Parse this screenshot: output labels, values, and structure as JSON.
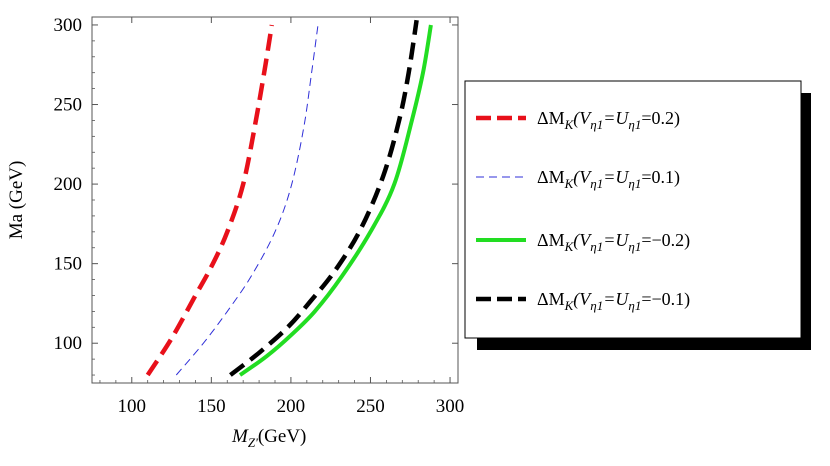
{
  "chart_data": {
    "type": "line",
    "xlabel": "M_{Z'}(GeV)",
    "ylabel": "Ma (GeV)",
    "xlim": [
      75,
      305
    ],
    "ylim": [
      75,
      305
    ],
    "x_ticks": [
      100,
      150,
      200,
      250,
      300
    ],
    "y_ticks": [
      100,
      150,
      200,
      250,
      300
    ],
    "grid": false,
    "legend_position": "right",
    "series": [
      {
        "name": "ΔM_K(V_η1=U_η1=0.2)",
        "legend": {
          "prefix": "ΔM",
          "sub1": "K",
          "open": "(V",
          "sub2": "η1",
          "mid": "=U",
          "sub3": "η1",
          "tail": "=0.2)"
        },
        "color": "#e8101a",
        "style": "thick-dashed",
        "points": [
          [
            110,
            80
          ],
          [
            125,
            103
          ],
          [
            140,
            130
          ],
          [
            150,
            148
          ],
          [
            160,
            170
          ],
          [
            170,
            200
          ],
          [
            178,
            240
          ],
          [
            184,
            275
          ],
          [
            188,
            300
          ]
        ]
      },
      {
        "name": "ΔM_K(V_η1=U_η1=0.1)",
        "legend": {
          "prefix": "ΔM",
          "sub1": "K",
          "open": "(V",
          "sub2": "η1",
          "mid": "=U",
          "sub3": "η1",
          "tail": "=0.1)"
        },
        "color": "#2f2fd8",
        "style": "thin-dashed",
        "points": [
          [
            128,
            80
          ],
          [
            145,
            100
          ],
          [
            160,
            120
          ],
          [
            175,
            142
          ],
          [
            190,
            170
          ],
          [
            200,
            198
          ],
          [
            208,
            235
          ],
          [
            213,
            270
          ],
          [
            217,
            300
          ]
        ]
      },
      {
        "name": "ΔM_K(V_η1=U_η1=−0.2)",
        "legend": {
          "prefix": "ΔM",
          "sub1": "K",
          "open": "(V",
          "sub2": "η1",
          "mid": "=U",
          "sub3": "η1",
          "tail": "=−0.2)"
        },
        "color": "#22dd22",
        "style": "thick-solid",
        "points": [
          [
            168,
            80
          ],
          [
            185,
            92
          ],
          [
            200,
            105
          ],
          [
            215,
            120
          ],
          [
            232,
            142
          ],
          [
            250,
            170
          ],
          [
            265,
            200
          ],
          [
            276,
            240
          ],
          [
            283,
            270
          ],
          [
            288,
            300
          ]
        ]
      },
      {
        "name": "ΔM_K(V_η1=U_η1=−0.1)",
        "legend": {
          "prefix": "ΔM",
          "sub1": "K",
          "open": "(V",
          "sub2": "η1",
          "mid": "=U",
          "sub3": "η1",
          "tail": "=−0.1)"
        },
        "color": "#000000",
        "style": "thick-dashed",
        "points": [
          [
            162,
            80
          ],
          [
            180,
            94
          ],
          [
            198,
            110
          ],
          [
            212,
            126
          ],
          [
            228,
            146
          ],
          [
            244,
            172
          ],
          [
            258,
            205
          ],
          [
            268,
            240
          ],
          [
            274,
            270
          ],
          [
            279,
            303
          ]
        ]
      }
    ]
  }
}
